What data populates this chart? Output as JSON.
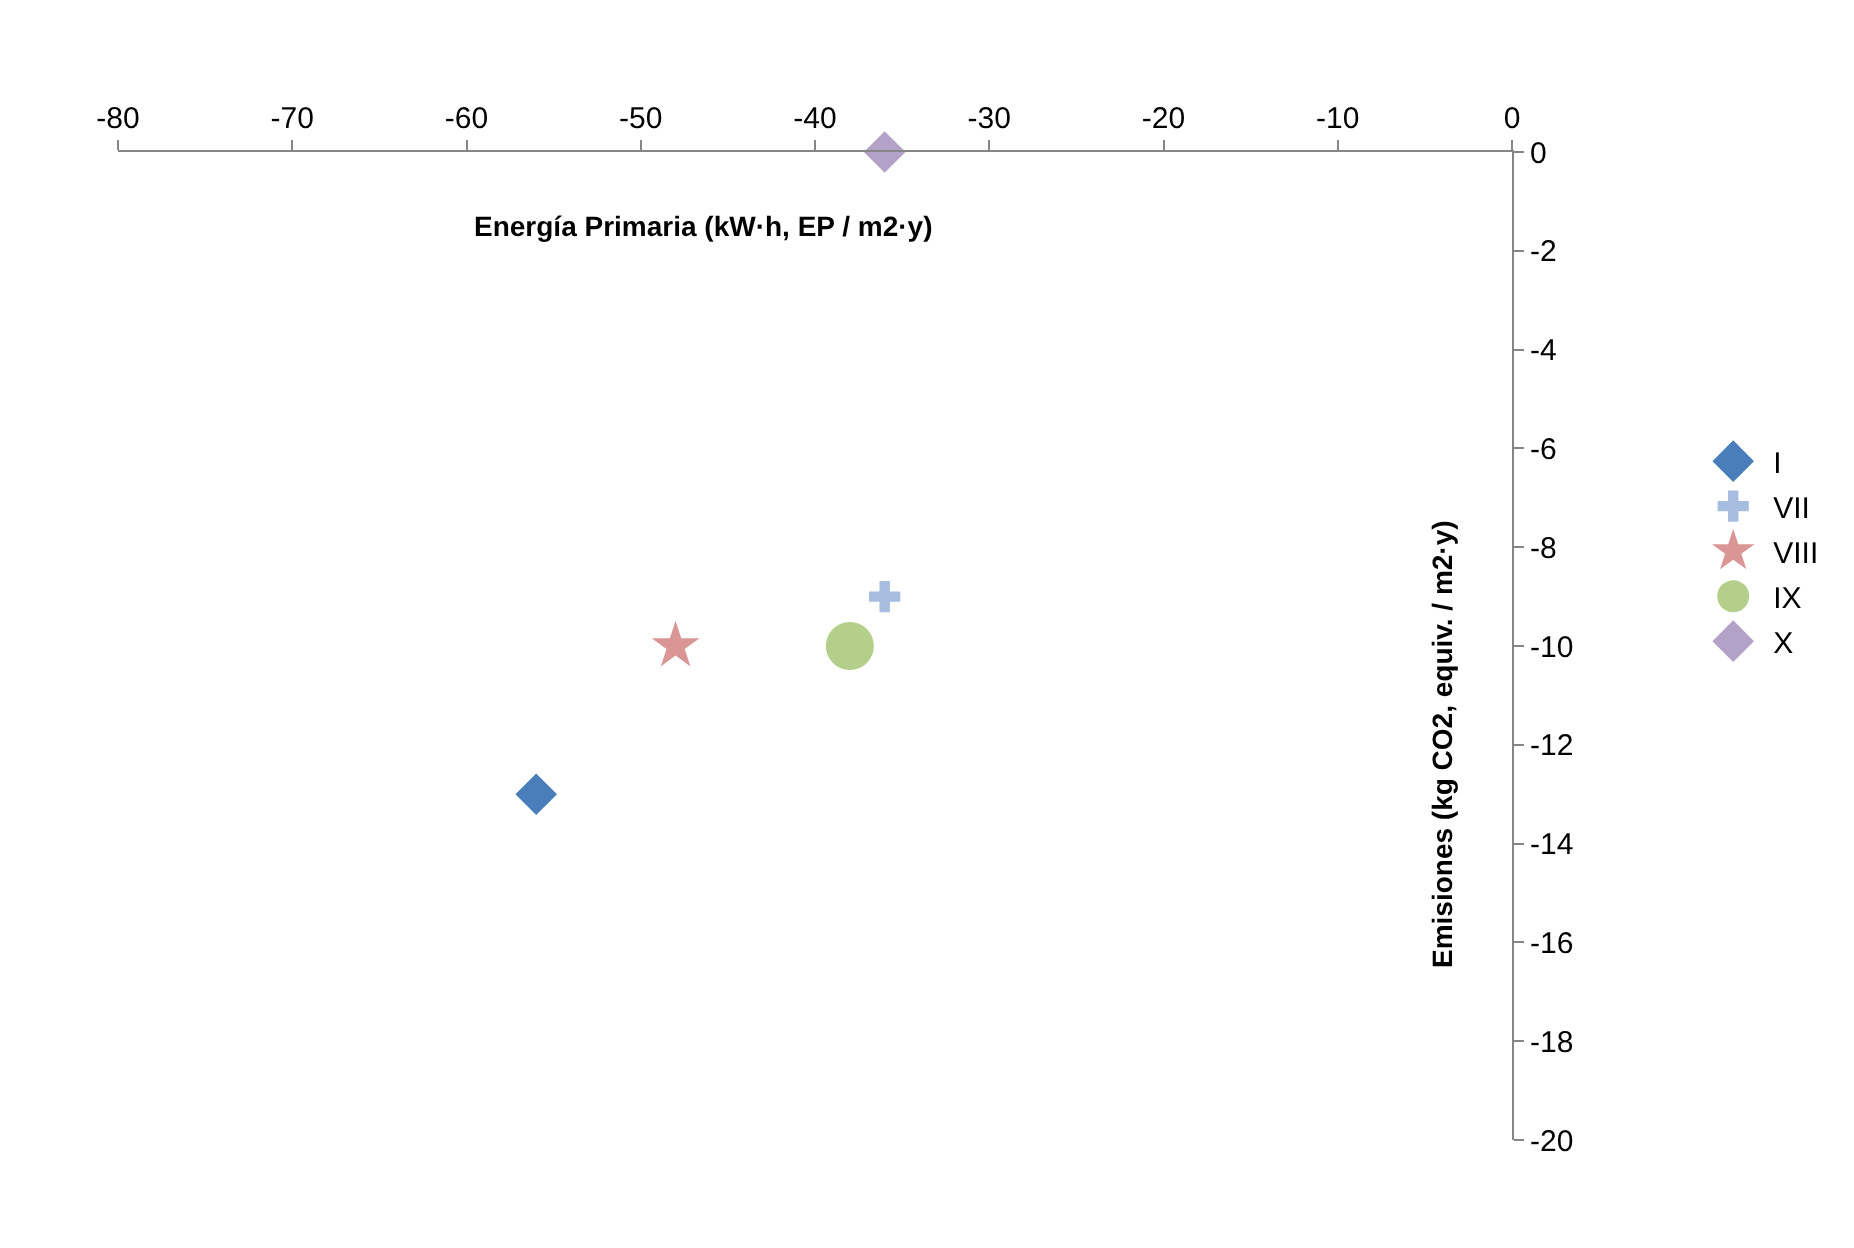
{
  "chart_data": {
    "type": "scatter",
    "xlabel": "Energía Primaria (kW·h, EP / m2·y)",
    "ylabel": "Emisiones (kg CO2, equiv. / m2·y)",
    "xlim": [
      -80,
      0
    ],
    "xticks": [
      -80,
      -70,
      -60,
      -50,
      -40,
      -30,
      -20,
      -10,
      0
    ],
    "ylim": [
      -20,
      0
    ],
    "yticks": [
      -20,
      -18,
      -16,
      -14,
      -12,
      -10,
      -8,
      -6,
      -4,
      -2,
      0
    ],
    "legend": "right",
    "series": [
      {
        "name": "I",
        "color": "#4a7ebb",
        "marker": "diamond",
        "x": [
          -56
        ],
        "values": [
          -13
        ]
      },
      {
        "name": "VII",
        "color": "#a6bddf",
        "marker": "cross",
        "x": [
          -36
        ],
        "values": [
          -9
        ]
      },
      {
        "name": "VIII",
        "color": "#d99694",
        "marker": "star",
        "x": [
          -48
        ],
        "values": [
          -10
        ]
      },
      {
        "name": "IX",
        "color": "#b3cf8a",
        "marker": "circle",
        "x": [
          -38
        ],
        "values": [
          -10
        ]
      },
      {
        "name": "X",
        "color": "#b3a2c7",
        "marker": "diamond",
        "x": [
          -36
        ],
        "values": [
          0
        ]
      }
    ]
  }
}
